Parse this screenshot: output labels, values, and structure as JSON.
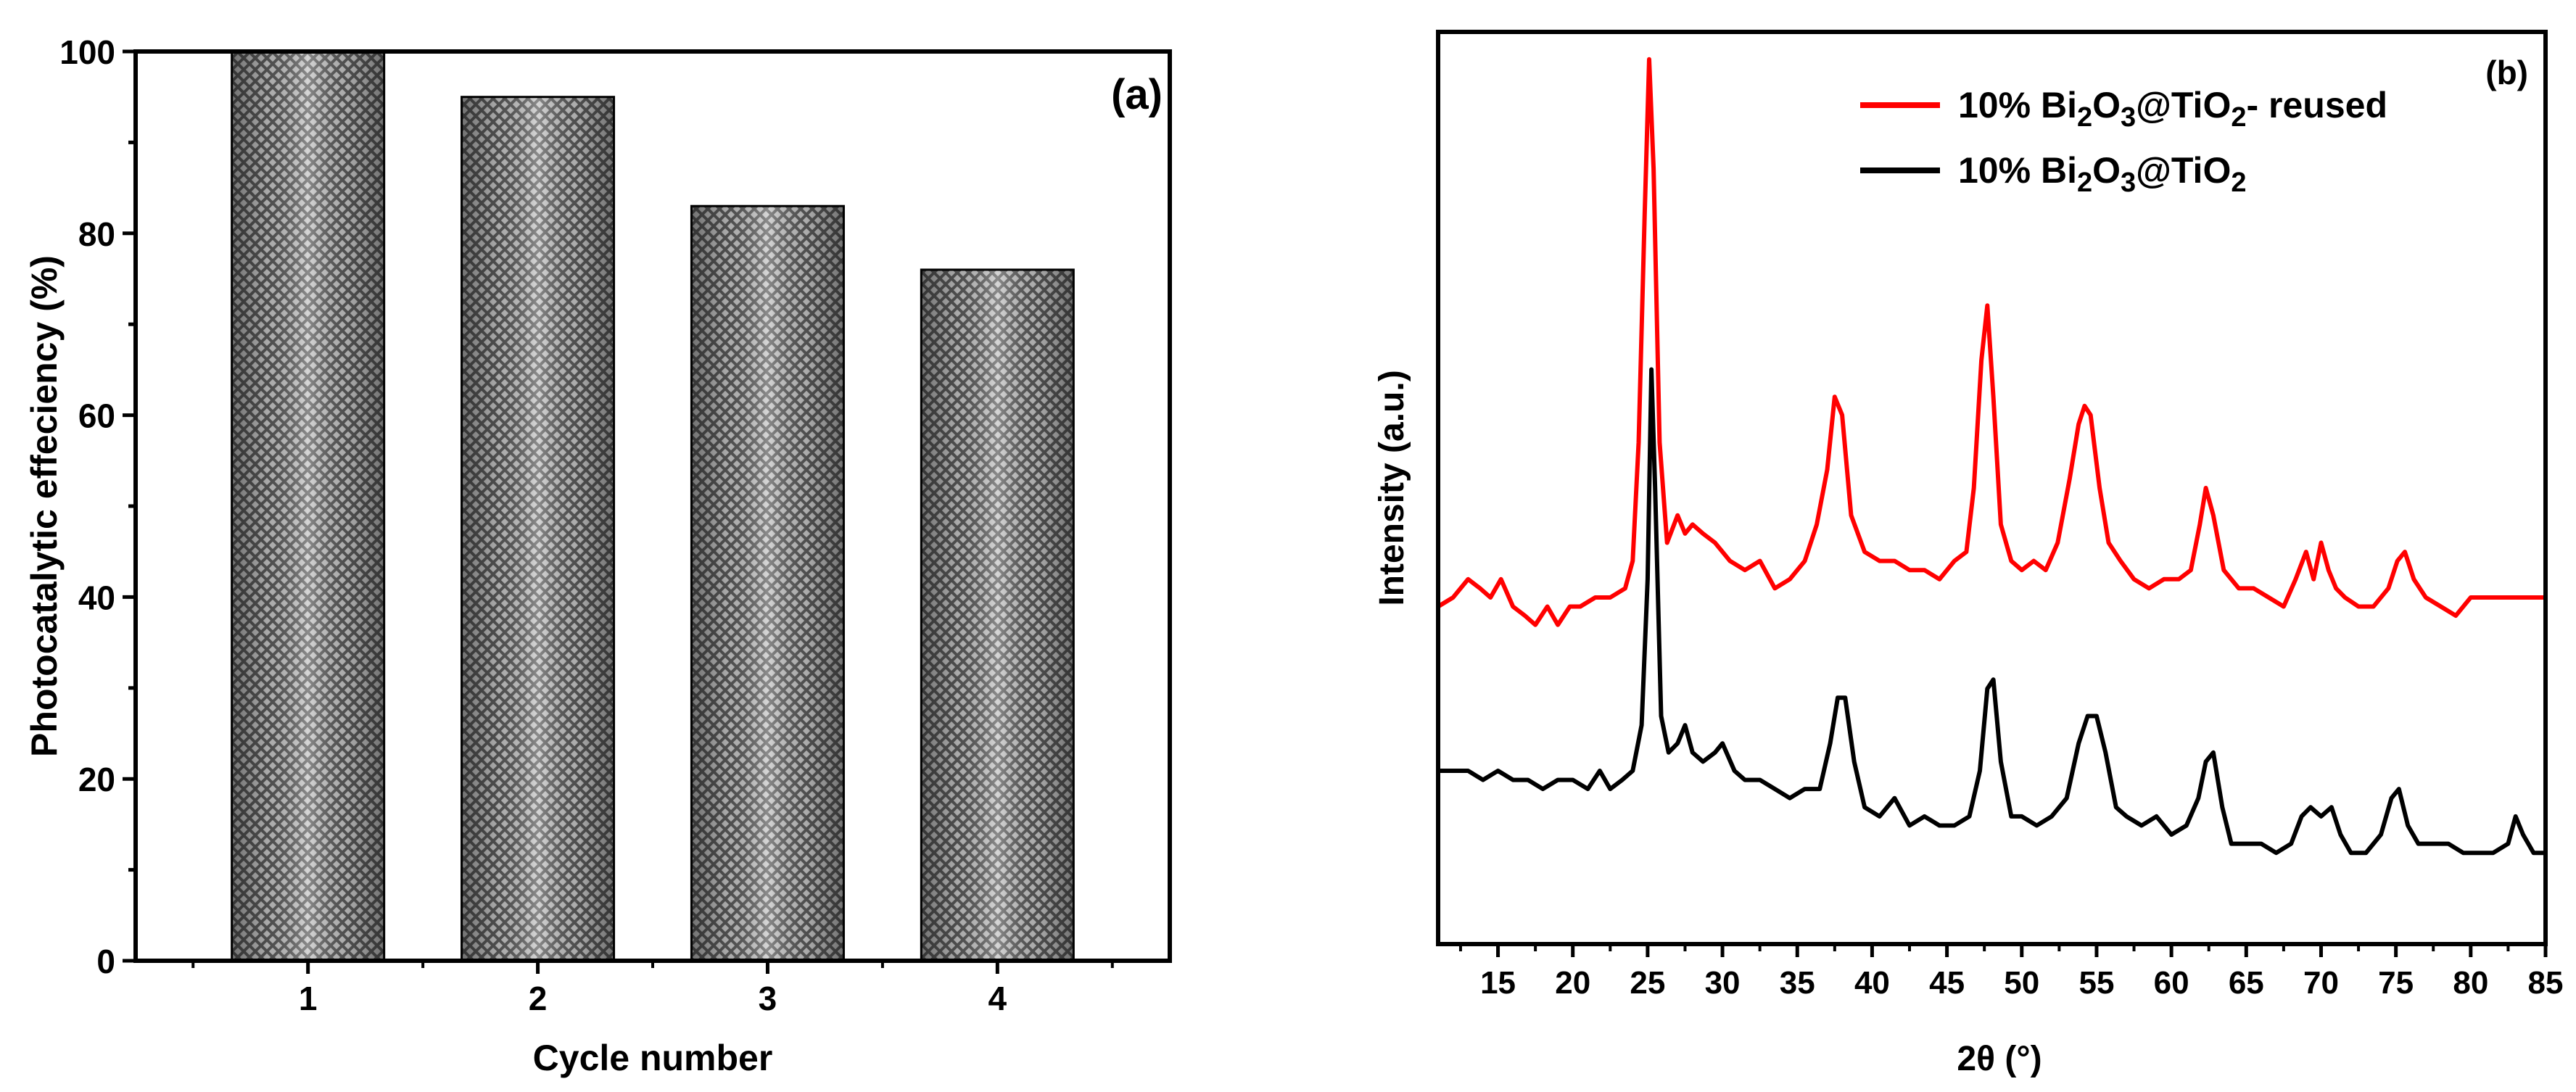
{
  "chart_data": [
    {
      "type": "bar",
      "panel_label": "(a)",
      "categories": [
        "1",
        "2",
        "3",
        "4"
      ],
      "values": [
        100,
        95,
        83,
        76
      ],
      "xlabel": "Cycle number",
      "ylabel": "Photocatalytic effeciency (%)",
      "ylim": [
        0,
        100
      ],
      "yticks": [
        0,
        20,
        40,
        60,
        80,
        100
      ],
      "grid": false,
      "bar_pattern": "crosshatch-gray"
    },
    {
      "type": "line",
      "panel_label": "(b)",
      "xlabel": "2θ (°)",
      "ylabel": "Intensity (a.u.)",
      "xlim": [
        11,
        85
      ],
      "xticks": [
        15,
        20,
        25,
        30,
        35,
        40,
        45,
        50,
        55,
        60,
        65,
        70,
        75,
        80,
        85
      ],
      "ylim": [
        0,
        100
      ],
      "y_ticks_labeled": false,
      "legend_position": "top-right",
      "series": [
        {
          "name": "10% Bi2O3@TiO2- reused",
          "legend_parts": {
            "a": "10% Bi",
            "s1": "2",
            "b": "O",
            "s2": "3",
            "c": "@TiO",
            "s3": "2",
            "d": "- reused"
          },
          "color": "#ff0000",
          "x": [
            11,
            12,
            13,
            13.8,
            14.5,
            15.2,
            16,
            16.8,
            17.5,
            18.3,
            19,
            19.8,
            20.5,
            21.5,
            22.5,
            23.5,
            24,
            24.4,
            24.8,
            25.1,
            25.4,
            25.8,
            26.3,
            27,
            27.5,
            28,
            28.7,
            29.5,
            30.5,
            31.5,
            32.5,
            33.5,
            34.5,
            35.5,
            36.3,
            37,
            37.5,
            38,
            38.6,
            39.5,
            40.5,
            41.5,
            42.5,
            43.5,
            44.5,
            45.5,
            46.3,
            46.8,
            47.3,
            47.7,
            48.1,
            48.6,
            49.3,
            50,
            50.8,
            51.6,
            52.4,
            53.2,
            53.8,
            54.2,
            54.6,
            55.2,
            55.8,
            56.6,
            57.5,
            58.5,
            59.5,
            60.5,
            61.3,
            61.9,
            62.3,
            62.8,
            63.5,
            64.5,
            65.5,
            66.5,
            67.5,
            68.3,
            69,
            69.5,
            70,
            70.5,
            71,
            71.6,
            72.5,
            73.5,
            74.5,
            75.1,
            75.6,
            76.2,
            77,
            78,
            79,
            80,
            85
          ],
          "y": [
            37,
            38,
            40,
            39,
            38,
            40,
            37,
            36,
            35,
            37,
            35,
            37,
            37,
            38,
            38,
            39,
            42,
            55,
            80,
            97,
            85,
            55,
            44,
            47,
            45,
            46,
            45,
            44,
            42,
            41,
            42,
            39,
            40,
            42,
            46,
            52,
            60,
            58,
            47,
            43,
            42,
            42,
            41,
            41,
            40,
            42,
            43,
            50,
            64,
            70,
            60,
            46,
            42,
            41,
            42,
            41,
            44,
            51,
            57,
            59,
            58,
            50,
            44,
            42,
            40,
            39,
            40,
            40,
            41,
            46,
            50,
            47,
            41,
            39,
            39,
            38,
            37,
            40,
            43,
            40,
            44,
            41,
            39,
            38,
            37,
            37,
            39,
            42,
            43,
            40,
            38,
            37,
            36,
            38,
            38
          ]
        },
        {
          "name": "10% Bi2O3@TiO2",
          "legend_parts": {
            "a": "10% Bi",
            "s1": "2",
            "b": "O",
            "s2": "3",
            "c": "@TiO",
            "s3": "2"
          },
          "color": "#000000",
          "x": [
            11,
            12,
            13,
            14,
            15,
            16,
            17,
            18,
            19,
            20,
            21,
            21.8,
            22.5,
            23.3,
            24,
            24.6,
            25,
            25.25,
            25.5,
            25.9,
            26.4,
            27,
            27.5,
            28,
            28.7,
            29.5,
            30,
            30.8,
            31.5,
            32.5,
            33.5,
            34.5,
            35.5,
            36.5,
            37.2,
            37.7,
            38.2,
            38.8,
            39.5,
            40.5,
            41.5,
            42.5,
            43.5,
            44.5,
            45.5,
            46.5,
            47.2,
            47.7,
            48.1,
            48.6,
            49.3,
            50,
            51,
            52,
            53,
            53.8,
            54.4,
            55,
            55.6,
            56.3,
            57,
            58,
            59,
            60,
            61,
            61.8,
            62.3,
            62.8,
            63.4,
            64,
            65,
            66,
            67,
            68,
            68.7,
            69.3,
            70,
            70.7,
            71.3,
            72,
            73,
            74,
            74.7,
            75.2,
            75.8,
            76.5,
            77.5,
            78.5,
            79.5,
            80.5,
            81.5,
            82.5,
            83,
            83.5,
            84.2,
            85
          ],
          "y": [
            19,
            19,
            19,
            18,
            19,
            18,
            18,
            17,
            18,
            18,
            17,
            19,
            17,
            18,
            19,
            24,
            40,
            63,
            50,
            25,
            21,
            22,
            24,
            21,
            20,
            21,
            22,
            19,
            18,
            18,
            17,
            16,
            17,
            17,
            22,
            27,
            27,
            20,
            15,
            14,
            16,
            13,
            14,
            13,
            13,
            14,
            19,
            28,
            29,
            20,
            14,
            14,
            13,
            14,
            16,
            22,
            25,
            25,
            21,
            15,
            14,
            13,
            14,
            12,
            13,
            16,
            20,
            21,
            15,
            11,
            11,
            11,
            10,
            11,
            14,
            15,
            14,
            15,
            12,
            10,
            10,
            12,
            16,
            17,
            13,
            11,
            11,
            11,
            10,
            10,
            10,
            11,
            14,
            12,
            10,
            10
          ]
        }
      ]
    }
  ]
}
